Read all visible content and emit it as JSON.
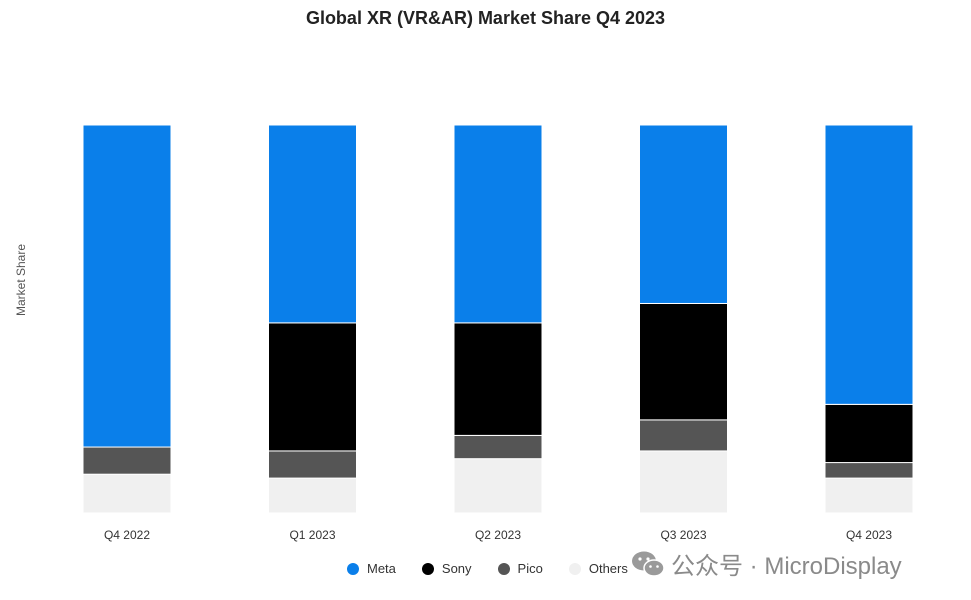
{
  "watermark": {
    "text": "公众号 · MicroDisplay"
  },
  "chart_data": {
    "type": "bar",
    "stacked": true,
    "title": "Global XR (VR&AR) Market Share Q4 2023",
    "xlabel": "",
    "ylabel": "Market Share",
    "ylim": [
      0,
      100
    ],
    "grid": false,
    "legend_position": "bottom",
    "categories": [
      "Q4 2022",
      "Q1 2023",
      "Q2 2023",
      "Q3 2023",
      "Q4 2023"
    ],
    "series": [
      {
        "name": "Others",
        "color": "#f0f0f0",
        "values": [
          10,
          9,
          14,
          16,
          9
        ]
      },
      {
        "name": "Pico",
        "color": "#555555",
        "values": [
          7,
          7,
          6,
          8,
          4
        ]
      },
      {
        "name": "Sony",
        "color": "#000000",
        "values": [
          0,
          33,
          29,
          30,
          15
        ]
      },
      {
        "name": "Meta",
        "color": "#0a7fea",
        "values": [
          83,
          51,
          51,
          46,
          72
        ]
      }
    ],
    "legend_order": [
      "Meta",
      "Sony",
      "Pico",
      "Others"
    ]
  }
}
